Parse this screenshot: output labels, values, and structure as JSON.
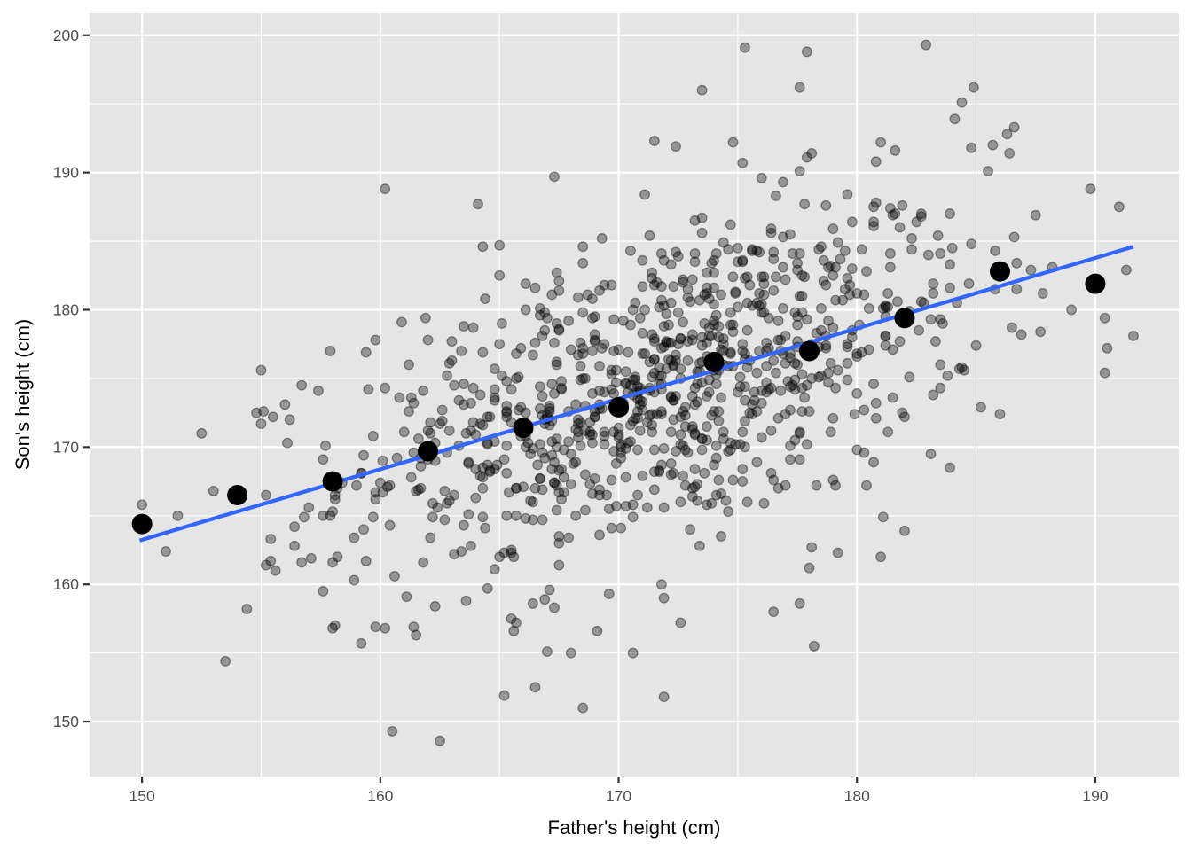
{
  "chart_data": {
    "type": "scatter",
    "title": "",
    "xlabel": "Father's height (cm)",
    "ylabel": "Son's height (cm)",
    "xlim": [
      147.8,
      193.5
    ],
    "ylim": [
      146.0,
      201.6
    ],
    "x_ticks": [
      150,
      160,
      170,
      180,
      190
    ],
    "y_ticks": [
      150,
      160,
      170,
      180,
      190,
      200
    ],
    "x_tick_labels": [
      "150",
      "160",
      "170",
      "180",
      "190"
    ],
    "y_tick_labels": [
      "150",
      "160",
      "170",
      "180",
      "190",
      "200"
    ],
    "grid": true,
    "legend": "none",
    "colors": {
      "panel_background": "#e5e5e5",
      "grid_major": "#ffffff",
      "scatter_point": "#000000",
      "scatter_alpha": 0.35,
      "binned_mean_point": "#000000",
      "regression_line": "#3366ff",
      "tick_label": "#4d4d4d",
      "tick_mark": "#333333"
    },
    "series": [
      {
        "name": "observations",
        "kind": "scatter",
        "approx_count": 1000,
        "center": [
          171.9,
          174.5
        ],
        "sd": [
          7.0,
          7.1
        ],
        "correlation": 0.5,
        "notable_points": [
          [
            150.0,
            165.8
          ],
          [
            151.0,
            162.4
          ],
          [
            151.5,
            165.0
          ],
          [
            152.5,
            171.0
          ],
          [
            153.0,
            166.8
          ],
          [
            153.5,
            154.4
          ],
          [
            154.4,
            158.2
          ],
          [
            155.0,
            175.6
          ],
          [
            155.1,
            172.6
          ],
          [
            155.4,
            163.3
          ],
          [
            156.2,
            172.0
          ],
          [
            157.0,
            165.6
          ],
          [
            157.1,
            161.9
          ],
          [
            157.6,
            159.5
          ],
          [
            158.9,
            160.3
          ],
          [
            159.2,
            155.7
          ],
          [
            159.8,
            156.9
          ],
          [
            160.2,
            188.8
          ],
          [
            160.5,
            149.3
          ],
          [
            160.6,
            160.6
          ],
          [
            162.1,
            163.4
          ],
          [
            162.5,
            148.6
          ],
          [
            162.3,
            158.4
          ],
          [
            163.6,
            158.8
          ],
          [
            164.1,
            187.7
          ],
          [
            164.3,
            184.6
          ],
          [
            165.2,
            151.9
          ],
          [
            165.5,
            157.5
          ],
          [
            165.6,
            156.6
          ],
          [
            166.5,
            152.5
          ],
          [
            167.0,
            155.1
          ],
          [
            167.3,
            189.7
          ],
          [
            168.0,
            155.0
          ],
          [
            169.1,
            156.6
          ],
          [
            169.6,
            159.3
          ],
          [
            170.6,
            155.0
          ],
          [
            171.5,
            192.3
          ],
          [
            171.8,
            160.0
          ],
          [
            171.9,
            151.8
          ],
          [
            172.4,
            191.9
          ],
          [
            172.6,
            157.2
          ],
          [
            173.5,
            196.0
          ],
          [
            174.3,
            163.5
          ],
          [
            174.8,
            192.2
          ],
          [
            175.2,
            190.7
          ],
          [
            175.3,
            199.1
          ],
          [
            176.5,
            158.0
          ],
          [
            177.6,
            196.2
          ],
          [
            177.6,
            158.6
          ],
          [
            177.9,
            198.8
          ],
          [
            178.2,
            155.5
          ],
          [
            179.2,
            162.3
          ],
          [
            180.8,
            190.8
          ],
          [
            181.1,
            164.9
          ],
          [
            182.0,
            163.9
          ],
          [
            183.1,
            169.5
          ],
          [
            184.1,
            193.9
          ],
          [
            184.4,
            195.1
          ],
          [
            184.9,
            196.2
          ],
          [
            185.7,
            192.0
          ],
          [
            186.4,
            191.4
          ],
          [
            186.6,
            193.3
          ],
          [
            187.7,
            178.4
          ],
          [
            189.0,
            180.0
          ],
          [
            189.8,
            188.8
          ],
          [
            190.4,
            175.4
          ],
          [
            191.0,
            187.5
          ],
          [
            191.6,
            178.1
          ],
          [
            186.0,
            172.4
          ],
          [
            185.2,
            172.9
          ]
        ]
      },
      {
        "name": "binned means",
        "kind": "scatter",
        "x": [
          150,
          154,
          158,
          162,
          166,
          170,
          174,
          178,
          182,
          186,
          190
        ],
        "y": [
          164.4,
          166.5,
          167.5,
          169.7,
          171.4,
          172.9,
          176.2,
          177.0,
          179.4,
          182.8,
          181.9
        ]
      },
      {
        "name": "regression line",
        "kind": "line",
        "x": [
          149.9,
          191.6
        ],
        "y": [
          163.2,
          184.6
        ],
        "slope": 0.513,
        "intercept": 86.3
      }
    ]
  }
}
